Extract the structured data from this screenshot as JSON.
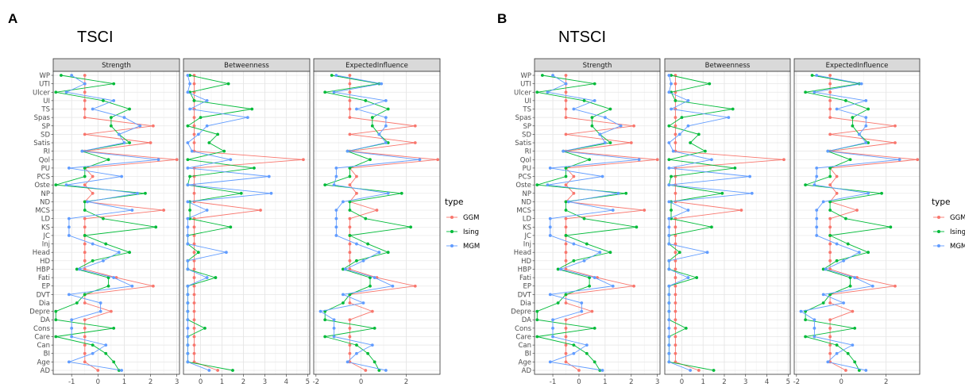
{
  "panels": [
    {
      "label": "A",
      "title": "TSCI"
    },
    {
      "label": "B",
      "title": "NTSCI"
    }
  ],
  "chart_data": [
    {
      "type": "line",
      "title": "TSCI",
      "legend_title": "type",
      "legend_position": "right",
      "grid": true,
      "categories": [
        "WP",
        "UTI",
        "Ulcer",
        "UI",
        "TS",
        "Spas",
        "SP",
        "SD",
        "Satis",
        "RI",
        "Qol",
        "PU",
        "PCS",
        "Oste",
        "NP",
        "ND",
        "MCS",
        "LD",
        "KS",
        "JC",
        "Inj",
        "Head",
        "HD",
        "HBP",
        "Fati",
        "EP",
        "DVT",
        "Dia",
        "Depre",
        "DA",
        "Cons",
        "Care",
        "Can",
        "BI",
        "Age",
        "AD"
      ],
      "facets": [
        {
          "name": "Strength",
          "xlim": [
            -1.7,
            3.1
          ],
          "xticks": [
            -1,
            0,
            1,
            2,
            3
          ]
        },
        {
          "name": "Betweenness",
          "xlim": [
            -0.8,
            5.1
          ],
          "xticks": [
            0,
            1,
            2,
            3,
            4,
            5
          ]
        },
        {
          "name": "ExpectedInfluence",
          "xlim": [
            -2.1,
            3.5
          ],
          "xticks": [
            -2,
            0,
            2
          ]
        }
      ],
      "series": [
        {
          "name": "GGM",
          "color": "#F8766D",
          "values": {
            "Strength": [
              -0.5,
              -0.5,
              -0.5,
              -0.5,
              -0.5,
              -0.5,
              2.1,
              -0.5,
              2.0,
              -0.5,
              3.0,
              -0.5,
              -0.2,
              -0.5,
              -0.2,
              -0.5,
              2.5,
              -0.5,
              -0.5,
              -0.5,
              -0.5,
              -0.5,
              -0.5,
              -0.5,
              0.7,
              2.1,
              -0.5,
              -0.5,
              0.5,
              -0.5,
              -0.5,
              -0.5,
              -0.5,
              -0.5,
              -0.5,
              0.0
            ],
            "Betweenness": [
              -0.3,
              -0.3,
              -0.3,
              -0.3,
              -0.3,
              -0.3,
              -0.3,
              -0.3,
              -0.3,
              -0.3,
              4.8,
              -0.3,
              -0.3,
              -0.3,
              -0.3,
              -0.3,
              2.8,
              -0.3,
              -0.3,
              -0.3,
              -0.3,
              -0.3,
              -0.3,
              -0.3,
              -0.3,
              -0.3,
              -0.3,
              -0.3,
              -0.3,
              -0.3,
              -0.3,
              -0.3,
              -0.3,
              -0.3,
              -0.3,
              0.8
            ],
            "ExpectedInfluence": [
              -0.5,
              -0.5,
              -0.5,
              -0.5,
              -0.5,
              -0.5,
              2.4,
              -0.5,
              2.4,
              -0.5,
              3.4,
              -0.5,
              -0.2,
              -0.5,
              -0.2,
              -0.5,
              0.7,
              -0.5,
              -0.5,
              -0.5,
              -0.5,
              -0.5,
              -0.5,
              -0.5,
              0.7,
              2.4,
              -0.5,
              -0.5,
              0.5,
              -0.5,
              -0.5,
              -0.5,
              -0.5,
              -0.5,
              -0.5,
              0.2
            ]
          }
        },
        {
          "name": "Ising",
          "color": "#00BA38",
          "values": {
            "Strength": [
              -1.4,
              0.6,
              -1.6,
              0.2,
              1.2,
              0.5,
              0.5,
              0.8,
              1.2,
              -0.6,
              0.4,
              -0.5,
              -0.5,
              -1.6,
              1.8,
              -0.5,
              -0.5,
              0.2,
              2.2,
              -0.5,
              0.3,
              1.2,
              -0.2,
              -0.8,
              0.4,
              0.4,
              -0.5,
              -0.8,
              -1.6,
              -1.6,
              0.6,
              -1.6,
              -0.2,
              0.3,
              0.6,
              0.8
            ],
            "Betweenness": [
              -0.5,
              1.3,
              -0.5,
              -0.3,
              2.4,
              0.0,
              -0.6,
              0.8,
              0.4,
              1.1,
              -0.6,
              2.5,
              -0.5,
              -0.6,
              1.9,
              -0.5,
              -0.5,
              -0.5,
              1.4,
              -0.6,
              -0.6,
              -0.1,
              -0.6,
              -0.6,
              0.7,
              -0.6,
              -0.6,
              -0.6,
              -0.6,
              -0.6,
              0.2,
              -0.6,
              -0.6,
              -0.6,
              -0.6,
              1.5
            ],
            "ExpectedInfluence": [
              -1.3,
              0.8,
              -1.6,
              0.2,
              1.2,
              0.5,
              0.5,
              0.8,
              1.2,
              -0.6,
              0.4,
              -0.5,
              -0.5,
              -1.6,
              1.8,
              -0.5,
              -0.5,
              0.2,
              2.2,
              -0.5,
              0.3,
              1.2,
              -0.2,
              -0.8,
              0.4,
              0.4,
              -0.5,
              -0.8,
              -1.6,
              -1.6,
              0.6,
              -1.6,
              -0.2,
              0.3,
              0.6,
              0.8
            ]
          }
        },
        {
          "name": "MGM",
          "color": "#619CFF",
          "values": {
            "Strength": [
              -1.0,
              -0.5,
              -1.2,
              0.6,
              -0.2,
              1.0,
              1.6,
              0.8,
              1.0,
              -0.6,
              2.3,
              -1.1,
              0.9,
              -1.2,
              1.5,
              -0.4,
              1.3,
              -1.1,
              -1.1,
              -1.1,
              -0.2,
              0.8,
              0.2,
              -0.7,
              0.6,
              1.3,
              -1.1,
              0.1,
              0.1,
              -1.0,
              -1.0,
              -1.0,
              0.3,
              -0.2,
              -1.1,
              0.9
            ],
            "Betweenness": [
              -0.6,
              -0.5,
              -0.6,
              0.3,
              -0.5,
              2.2,
              0.3,
              -0.1,
              -0.6,
              -0.4,
              1.4,
              -0.6,
              3.2,
              -0.6,
              3.3,
              -0.6,
              0.3,
              -0.6,
              -0.6,
              -0.6,
              -0.6,
              1.2,
              -0.6,
              -0.6,
              0.3,
              -0.6,
              -0.6,
              -0.6,
              -0.6,
              -0.6,
              -0.6,
              -0.6,
              -0.6,
              -0.6,
              -0.6,
              0.4
            ],
            "ExpectedInfluence": [
              -1.1,
              0.9,
              -1.2,
              1.1,
              -0.2,
              1.1,
              1.1,
              0.8,
              1.1,
              -0.6,
              2.6,
              -1.1,
              -1.1,
              -1.2,
              1.2,
              -0.8,
              -1.1,
              -1.1,
              -1.1,
              -1.1,
              -0.2,
              0.8,
              0.1,
              -0.7,
              0.6,
              1.4,
              -0.8,
              0.1,
              -1.8,
              -1.2,
              -1.2,
              -1.2,
              0.5,
              -0.2,
              -0.6,
              1.1
            ]
          }
        }
      ]
    },
    {
      "type": "line",
      "title": "NTSCI",
      "legend_title": "type",
      "legend_position": "right",
      "grid": true,
      "categories": [
        "WP",
        "UTI",
        "Ulcer",
        "UI",
        "TS",
        "Spas",
        "SP",
        "SD",
        "Satis",
        "RI",
        "Qol",
        "PU",
        "PCS",
        "Oste",
        "NP",
        "ND",
        "MCS",
        "LD",
        "KS",
        "JC",
        "Inj",
        "Head",
        "HD",
        "HBP",
        "Fati",
        "EP",
        "DVT",
        "Dia",
        "Depre",
        "DA",
        "Cons",
        "Care",
        "Can",
        "BI",
        "Age",
        "AD"
      ],
      "facets": [
        {
          "name": "Strength",
          "xlim": [
            -1.7,
            3.1
          ],
          "xticks": [
            -1,
            0,
            1,
            2,
            3
          ]
        },
        {
          "name": "Betweenness",
          "xlim": [
            -0.8,
            5.1
          ],
          "xticks": [
            0,
            1,
            2,
            3,
            4,
            5
          ]
        },
        {
          "name": "ExpectedInfluence",
          "xlim": [
            -2.1,
            3.5
          ],
          "xticks": [
            -2,
            0,
            2
          ]
        }
      ],
      "series": [
        {
          "name": "GGM",
          "color": "#F8766D",
          "values": {
            "Strength": [
              -0.5,
              -0.5,
              -0.5,
              -0.5,
              -0.5,
              -0.5,
              2.1,
              -0.5,
              2.0,
              -0.5,
              3.0,
              -0.5,
              -0.2,
              -0.5,
              -0.2,
              -0.5,
              2.5,
              -0.5,
              -0.5,
              -0.5,
              -0.5,
              -0.5,
              -0.5,
              -0.5,
              0.7,
              2.1,
              -0.5,
              -0.5,
              0.5,
              -0.5,
              -0.5,
              -0.5,
              -0.5,
              -0.5,
              -0.5,
              0.0
            ],
            "Betweenness": [
              -0.3,
              -0.3,
              -0.3,
              -0.3,
              -0.3,
              -0.3,
              -0.3,
              -0.3,
              -0.3,
              -0.3,
              4.8,
              -0.3,
              -0.3,
              -0.3,
              -0.3,
              -0.3,
              2.8,
              -0.3,
              -0.3,
              -0.3,
              -0.3,
              -0.3,
              -0.3,
              -0.3,
              -0.3,
              -0.3,
              -0.3,
              -0.3,
              -0.3,
              -0.3,
              -0.3,
              -0.3,
              -0.3,
              -0.3,
              -0.3,
              0.8
            ],
            "ExpectedInfluence": [
              -0.5,
              -0.5,
              -0.5,
              -0.5,
              -0.5,
              -0.5,
              2.4,
              -0.5,
              2.4,
              -0.5,
              3.4,
              -0.5,
              -0.2,
              -0.5,
              -0.2,
              -0.5,
              0.7,
              -0.5,
              -0.5,
              -0.5,
              -0.5,
              -0.5,
              -0.5,
              -0.5,
              0.7,
              2.4,
              -0.5,
              -0.5,
              0.5,
              -0.5,
              -0.5,
              -0.5,
              -0.5,
              -0.5,
              -0.5,
              0.2
            ]
          }
        },
        {
          "name": "Ising",
          "color": "#00BA38",
          "values": {
            "Strength": [
              -1.4,
              0.6,
              -1.6,
              0.2,
              1.2,
              0.5,
              0.5,
              0.8,
              1.2,
              -0.6,
              0.4,
              -0.5,
              -0.5,
              -1.6,
              1.8,
              -0.5,
              -0.5,
              0.2,
              2.2,
              -0.5,
              0.3,
              1.2,
              -0.2,
              -0.8,
              0.4,
              0.4,
              -0.5,
              -0.8,
              -1.6,
              -1.6,
              0.6,
              -1.6,
              -0.2,
              0.3,
              0.6,
              0.8
            ],
            "Betweenness": [
              -0.5,
              1.3,
              -0.5,
              -0.3,
              2.4,
              0.0,
              -0.6,
              0.8,
              0.4,
              1.1,
              -0.6,
              2.5,
              -0.5,
              -0.6,
              1.9,
              -0.5,
              -0.5,
              -0.5,
              1.4,
              -0.6,
              -0.6,
              -0.1,
              -0.6,
              -0.6,
              0.7,
              -0.6,
              -0.6,
              -0.6,
              -0.6,
              -0.6,
              0.2,
              -0.6,
              -0.6,
              -0.6,
              -0.6,
              1.5
            ],
            "ExpectedInfluence": [
              -1.3,
              0.8,
              -1.6,
              0.2,
              1.2,
              0.5,
              0.5,
              0.8,
              1.2,
              -0.6,
              0.4,
              -0.5,
              -0.5,
              -1.6,
              1.8,
              -0.5,
              -0.5,
              0.2,
              2.2,
              -0.5,
              0.3,
              1.2,
              -0.2,
              -0.8,
              0.4,
              0.4,
              -0.5,
              -0.8,
              -1.6,
              -1.6,
              0.6,
              -1.6,
              -0.2,
              0.3,
              0.6,
              0.8
            ]
          }
        },
        {
          "name": "MGM",
          "color": "#619CFF",
          "values": {
            "Strength": [
              -1.0,
              -0.5,
              -1.2,
              0.6,
              -0.2,
              1.0,
              1.6,
              0.8,
              1.0,
              -0.6,
              2.3,
              -1.1,
              0.9,
              -1.2,
              1.5,
              -0.4,
              1.3,
              -1.1,
              -1.1,
              -1.1,
              -0.2,
              0.8,
              0.2,
              -0.7,
              0.6,
              1.3,
              -1.1,
              0.1,
              0.1,
              -1.0,
              -1.0,
              -1.0,
              0.3,
              -0.2,
              -1.1,
              0.9
            ],
            "Betweenness": [
              -0.6,
              -0.5,
              -0.6,
              0.3,
              -0.5,
              2.2,
              0.3,
              -0.1,
              -0.6,
              -0.4,
              1.4,
              -0.6,
              3.2,
              -0.6,
              3.3,
              -0.6,
              0.3,
              -0.6,
              -0.6,
              -0.6,
              -0.6,
              1.2,
              -0.6,
              -0.6,
              0.3,
              -0.6,
              -0.6,
              -0.6,
              -0.6,
              -0.6,
              -0.6,
              -0.6,
              -0.6,
              -0.6,
              -0.6,
              0.4
            ],
            "ExpectedInfluence": [
              -1.1,
              0.9,
              -1.2,
              1.1,
              -0.2,
              1.1,
              1.1,
              0.8,
              1.1,
              -0.6,
              2.6,
              -1.1,
              -1.1,
              -1.2,
              1.2,
              -0.8,
              -1.1,
              -1.1,
              -1.1,
              -1.1,
              -0.2,
              0.8,
              0.1,
              -0.7,
              0.6,
              1.4,
              -0.8,
              0.1,
              -1.8,
              -1.2,
              -1.2,
              -1.2,
              0.5,
              -0.2,
              -0.6,
              1.1
            ]
          }
        }
      ]
    }
  ]
}
